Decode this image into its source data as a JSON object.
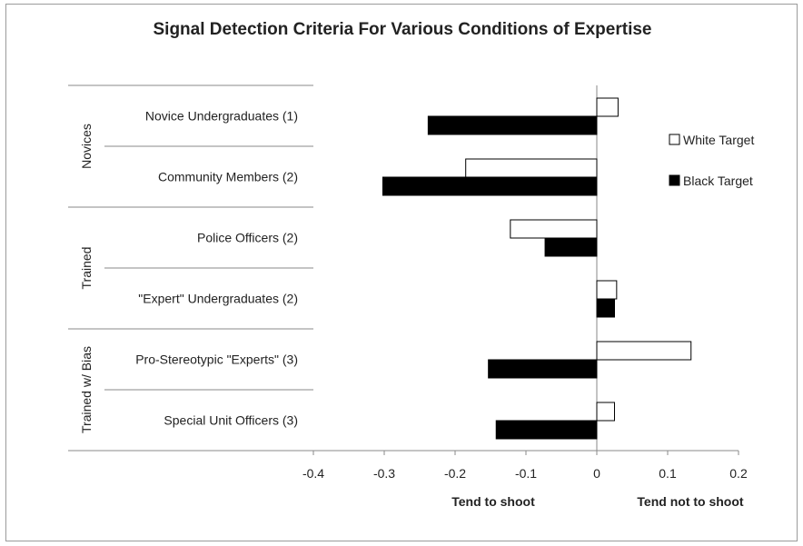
{
  "chart_data": {
    "type": "bar",
    "orientation": "horizontal",
    "title": "Signal Detection Criteria For Various Conditions of Expertise",
    "categories": [
      "Novice Undergraduates (1)",
      "Community Members (2)",
      "Police Officers (2)",
      "\"Expert\" Undergraduates (2)",
      "Pro-Stereotypic \"Experts\" (3)",
      "Special Unit Officers (3)"
    ],
    "groups": [
      {
        "label": "Novices",
        "categories": [
          0,
          1
        ]
      },
      {
        "label": "Trained",
        "categories": [
          2,
          3
        ]
      },
      {
        "label": "Trained w/ Bias",
        "categories": [
          4,
          5
        ]
      }
    ],
    "series": [
      {
        "name": "White Target",
        "color": "#ffffff",
        "values": [
          0.03,
          -0.185,
          -0.122,
          0.028,
          0.133,
          0.025
        ]
      },
      {
        "name": "Black Target",
        "color": "#000000",
        "values": [
          -0.238,
          -0.302,
          -0.073,
          0.025,
          -0.153,
          -0.142
        ]
      }
    ],
    "xlim": [
      -0.4,
      0.2
    ],
    "xticks": [
      "-0.4",
      "-0.3",
      "-0.2",
      "-0.1",
      "0",
      "0.1",
      "0.2"
    ],
    "xlabel_left": "Tend to shoot",
    "xlabel_right": "Tend not to shoot",
    "legend_position": "right",
    "grid": false
  }
}
